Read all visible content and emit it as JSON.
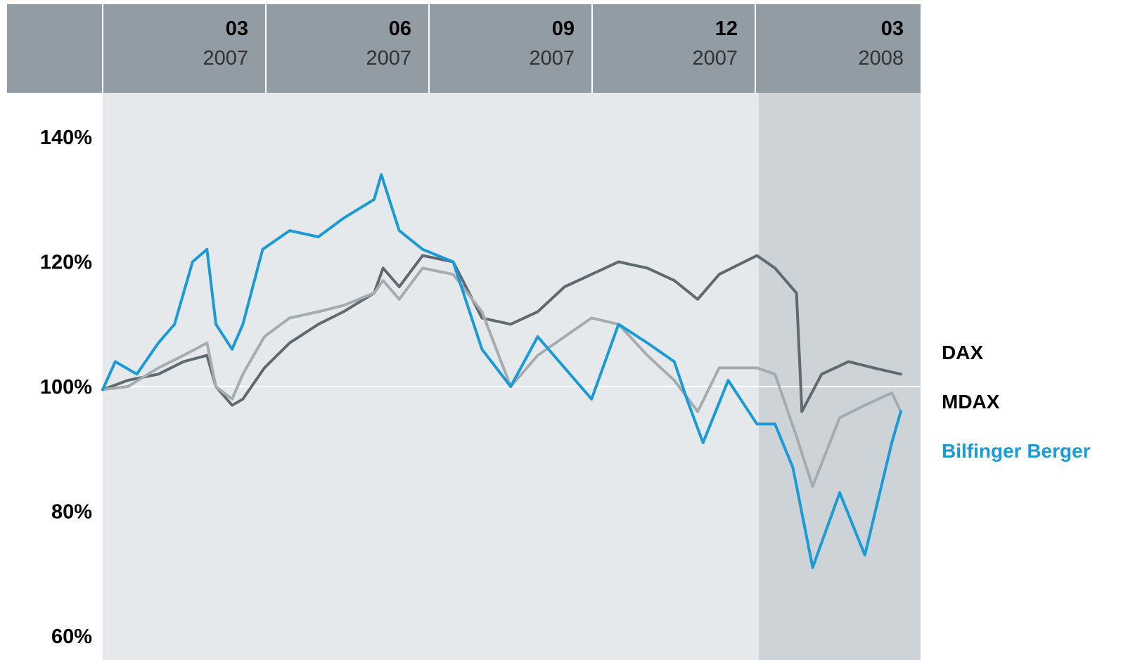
{
  "chart_data": {
    "type": "line",
    "title": "",
    "xlabel": "",
    "ylabel": "",
    "x_ticks": [
      {
        "month": "03",
        "year": "2007"
      },
      {
        "month": "06",
        "year": "2007"
      },
      {
        "month": "09",
        "year": "2007"
      },
      {
        "month": "12",
        "year": "2007"
      },
      {
        "month": "03",
        "year": "2008"
      }
    ],
    "x_range": [
      "2007-01-01",
      "2008-03-31"
    ],
    "highlight_range": [
      "2008-01-01",
      "2008-03-31"
    ],
    "y_ticks": [
      "140%",
      "120%",
      "100%",
      "80%",
      "60%"
    ],
    "ylim": [
      60,
      140
    ],
    "reference_line": 100,
    "legend_position": "right",
    "series": [
      {
        "name": "DAX",
        "color": "#5f6a70",
        "label_color": "#000000",
        "x": [
          "2007-01-01",
          "2007-01-15",
          "2007-02-01",
          "2007-02-15",
          "2007-02-28",
          "2007-03-05",
          "2007-03-14",
          "2007-03-20",
          "2007-04-01",
          "2007-04-15",
          "2007-05-01",
          "2007-05-15",
          "2007-06-01",
          "2007-06-06",
          "2007-06-15",
          "2007-06-28",
          "2007-07-15",
          "2007-07-31",
          "2007-08-16",
          "2007-08-31",
          "2007-09-15",
          "2007-09-30",
          "2007-10-15",
          "2007-10-31",
          "2007-11-15",
          "2007-11-28",
          "2007-12-10",
          "2007-12-31",
          "2008-01-10",
          "2008-01-22",
          "2008-01-25",
          "2008-02-05",
          "2008-02-20",
          "2008-03-05",
          "2008-03-20"
        ],
        "values": [
          99.5,
          101,
          102,
          104,
          105,
          100,
          97,
          98,
          103,
          107,
          110,
          112,
          115,
          119,
          116,
          121,
          120,
          111,
          110,
          112,
          116,
          118,
          120,
          119,
          117,
          114,
          118,
          121,
          119,
          115,
          96,
          102,
          104,
          103,
          102
        ]
      },
      {
        "name": "MDAX",
        "color": "#a5acb1",
        "label_color": "#000000",
        "x": [
          "2007-01-01",
          "2007-01-15",
          "2007-02-01",
          "2007-02-15",
          "2007-02-28",
          "2007-03-05",
          "2007-03-14",
          "2007-03-20",
          "2007-04-01",
          "2007-04-15",
          "2007-05-01",
          "2007-05-15",
          "2007-06-01",
          "2007-06-06",
          "2007-06-15",
          "2007-06-28",
          "2007-07-15",
          "2007-07-31",
          "2007-08-16",
          "2007-08-31",
          "2007-09-15",
          "2007-09-30",
          "2007-10-15",
          "2007-10-31",
          "2007-11-15",
          "2007-11-28",
          "2007-12-10",
          "2007-12-31",
          "2008-01-10",
          "2008-01-22",
          "2008-01-31",
          "2008-02-15",
          "2008-02-29",
          "2008-03-15",
          "2008-03-20"
        ],
        "values": [
          99.5,
          100,
          103,
          105,
          107,
          100,
          98,
          102,
          108,
          111,
          112,
          113,
          115,
          117,
          114,
          119,
          118,
          112,
          100,
          105,
          108,
          111,
          110,
          105,
          101,
          96,
          103,
          103,
          102,
          92,
          84,
          95,
          97,
          99,
          96
        ]
      },
      {
        "name": "Bilfinger Berger",
        "color": "#1a9ad6",
        "label_color": "#1a9ad6",
        "x": [
          "2007-01-01",
          "2007-01-08",
          "2007-01-20",
          "2007-02-01",
          "2007-02-10",
          "2007-02-20",
          "2007-02-28",
          "2007-03-05",
          "2007-03-14",
          "2007-03-20",
          "2007-03-31",
          "2007-04-15",
          "2007-05-01",
          "2007-05-15",
          "2007-06-01",
          "2007-06-05",
          "2007-06-15",
          "2007-06-28",
          "2007-07-15",
          "2007-07-31",
          "2007-08-16",
          "2007-08-31",
          "2007-09-15",
          "2007-09-30",
          "2007-10-15",
          "2007-10-31",
          "2007-11-15",
          "2007-11-22",
          "2007-12-01",
          "2007-12-15",
          "2007-12-31",
          "2008-01-10",
          "2008-01-20",
          "2008-01-31",
          "2008-02-15",
          "2008-02-29",
          "2008-03-15",
          "2008-03-20"
        ],
        "values": [
          99.5,
          104,
          102,
          107,
          110,
          120,
          122,
          110,
          106,
          110,
          122,
          125,
          124,
          127,
          130,
          134,
          125,
          122,
          120,
          106,
          100,
          108,
          103,
          98,
          110,
          107,
          104,
          98,
          91,
          101,
          94,
          94,
          87,
          71,
          83,
          73,
          91,
          96
        ]
      }
    ]
  }
}
